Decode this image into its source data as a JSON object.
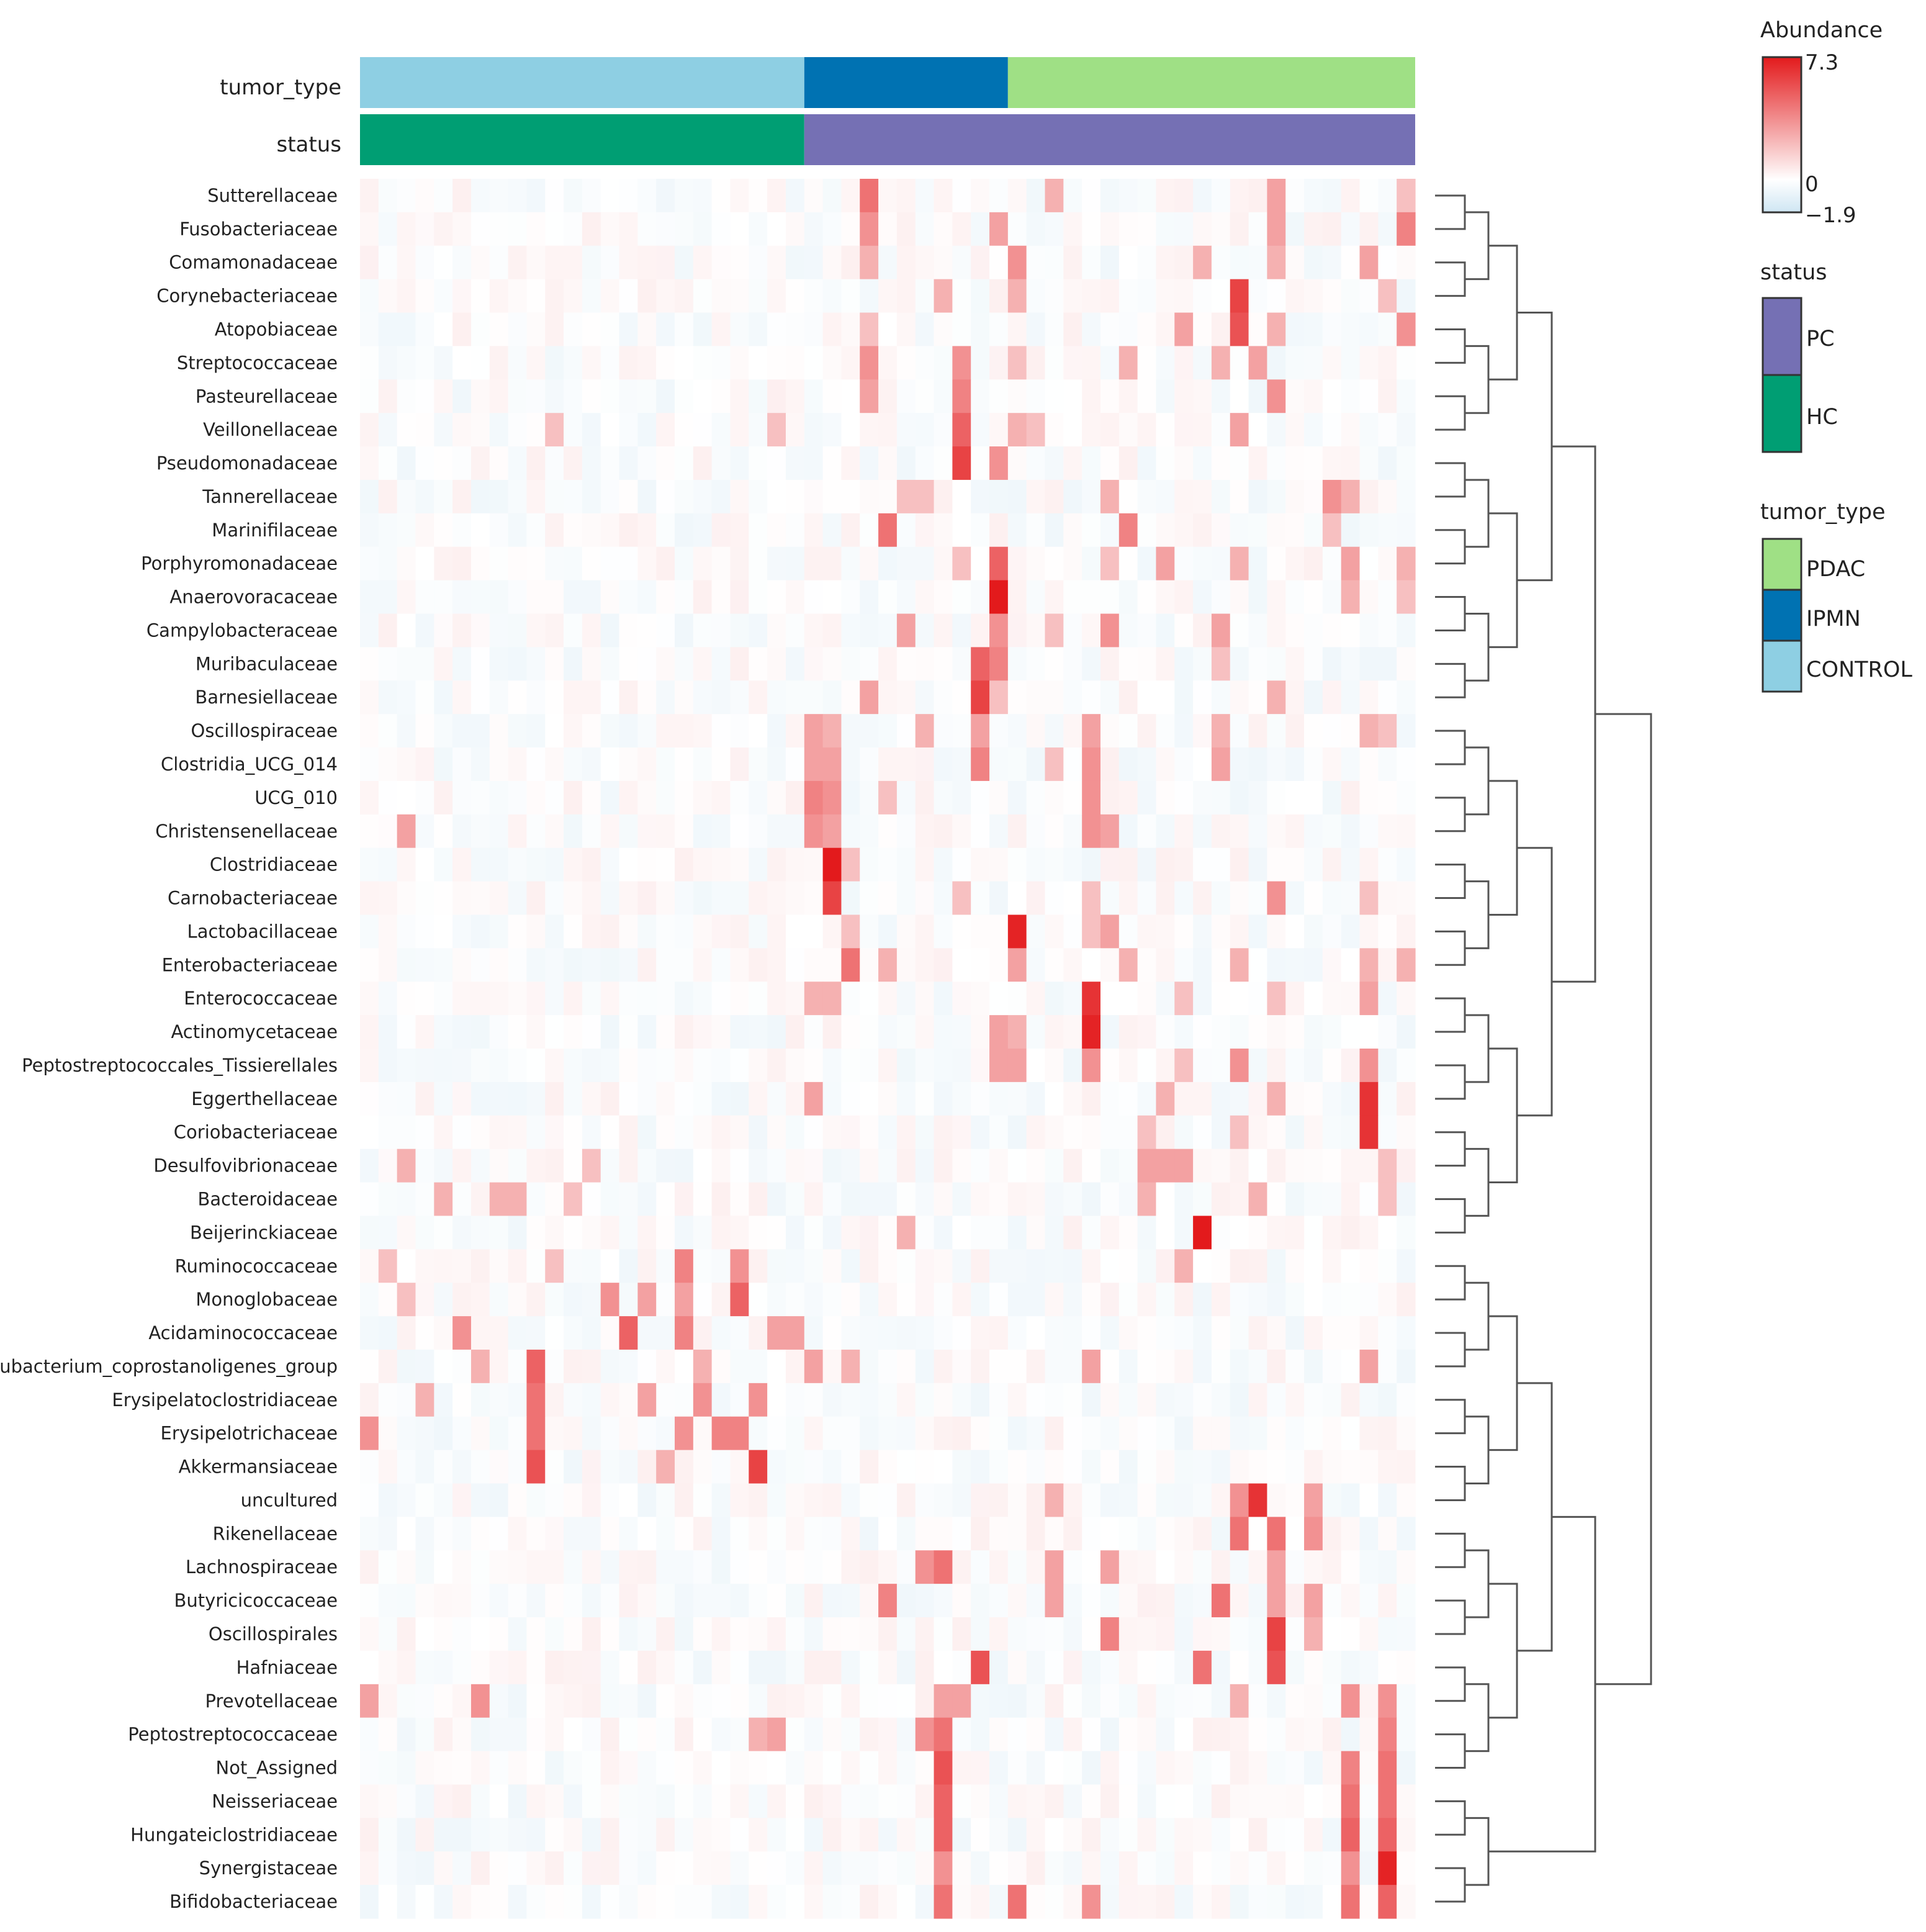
{
  "chart_data": {
    "type": "heatmap",
    "annotation_rows": [
      {
        "name": "tumor_type",
        "blocks": [
          {
            "label": "CONTROL",
            "count": 24
          },
          {
            "label": "IPMN",
            "count": 11
          },
          {
            "label": "PDAC",
            "count": 22
          }
        ]
      },
      {
        "name": "status",
        "blocks": [
          {
            "label": "HC",
            "count": 24
          },
          {
            "label": "PC",
            "count": 33
          }
        ]
      }
    ],
    "n_columns": 57,
    "rows": [
      "Sutterellaceae",
      "Fusobacteriaceae",
      "Comamonadaceae",
      "Corynebacteriaceae",
      "Atopobiaceae",
      "Streptococcaceae",
      "Pasteurellaceae",
      "Veillonellaceae",
      "Pseudomonadaceae",
      "Tannerellaceae",
      "Marinifilaceae",
      "Porphyromonadaceae",
      "Anaerovoracaceae",
      "Campylobacteraceae",
      "Muribaculaceae",
      "Barnesiellaceae",
      "Oscillospiraceae",
      "Clostridia_UCG_014",
      "UCG_010",
      "Christensenellaceae",
      "Clostridiaceae",
      "Carnobacteriaceae",
      "Lactobacillaceae",
      "Enterobacteriaceae",
      "Enterococcaceae",
      "Actinomycetaceae",
      "Peptostreptococcales_Tissierellales",
      "Eggerthellaceae",
      "Coriobacteriaceae",
      "Desulfovibrionaceae",
      "Bacteroidaceae",
      "Beijerinckiaceae",
      "Ruminococcaceae",
      "Monoglobaceae",
      "Acidaminococcaceae",
      "Eubacterium_coprostanoligenes_group",
      "Erysipelatoclostridiaceae",
      "Erysipelotrichaceae",
      "Akkermansiaceae",
      "uncultured",
      "Rikenellaceae",
      "Lachnospiraceae",
      "Butyricicoccaceae",
      "Oscillospirales",
      "Hafniaceae",
      "Prevotellaceae",
      "Peptostreptococcaceae",
      "Not_Assigned",
      "Neisseriaceae",
      "Hungateiclostridiaceae",
      "Synergistaceae",
      "Bifidobacteriaceae"
    ],
    "hot_cells": [
      [
        0,
        27,
        4.5
      ],
      [
        0,
        37,
        2.5
      ],
      [
        0,
        49,
        3.0
      ],
      [
        0,
        56,
        2.0
      ],
      [
        1,
        27,
        3.5
      ],
      [
        1,
        34,
        3.0
      ],
      [
        1,
        56,
        4.0
      ],
      [
        1,
        49,
        3.0
      ],
      [
        2,
        35,
        3.5
      ],
      [
        2,
        27,
        2.5
      ],
      [
        2,
        45,
        2.5
      ],
      [
        2,
        54,
        3.0
      ],
      [
        2,
        49,
        2.5
      ],
      [
        3,
        47,
        6.0
      ],
      [
        3,
        31,
        2.5
      ],
      [
        3,
        35,
        2.5
      ],
      [
        3,
        55,
        2.0
      ],
      [
        4,
        47,
        5.5
      ],
      [
        4,
        44,
        3.0
      ],
      [
        4,
        56,
        3.5
      ],
      [
        4,
        27,
        2.0
      ],
      [
        4,
        49,
        2.5
      ],
      [
        5,
        27,
        3.5
      ],
      [
        5,
        32,
        3.5
      ],
      [
        5,
        48,
        3.0
      ],
      [
        5,
        46,
        2.5
      ],
      [
        5,
        41,
        2.5
      ],
      [
        5,
        35,
        2.0
      ],
      [
        6,
        27,
        3.0
      ],
      [
        6,
        32,
        4.0
      ],
      [
        6,
        49,
        3.5
      ],
      [
        7,
        32,
        5.0
      ],
      [
        7,
        35,
        2.5
      ],
      [
        7,
        36,
        2.0
      ],
      [
        7,
        47,
        3.0
      ],
      [
        7,
        10,
        2.0
      ],
      [
        7,
        22,
        2.0
      ],
      [
        8,
        32,
        6.0
      ],
      [
        8,
        34,
        3.5
      ],
      [
        9,
        52,
        3.5
      ],
      [
        9,
        53,
        2.5
      ],
      [
        9,
        40,
        2.5
      ],
      [
        9,
        30,
        2.0
      ],
      [
        9,
        29,
        2.0
      ],
      [
        10,
        28,
        4.5
      ],
      [
        10,
        41,
        4.0
      ],
      [
        10,
        52,
        2.0
      ],
      [
        11,
        34,
        5.0
      ],
      [
        11,
        43,
        3.0
      ],
      [
        11,
        47,
        2.5
      ],
      [
        11,
        53,
        3.0
      ],
      [
        11,
        56,
        2.5
      ],
      [
        11,
        40,
        2.0
      ],
      [
        11,
        32,
        2.0
      ],
      [
        12,
        34,
        7.3
      ],
      [
        12,
        53,
        2.5
      ],
      [
        12,
        56,
        2.0
      ],
      [
        13,
        34,
        3.5
      ],
      [
        13,
        29,
        3.0
      ],
      [
        13,
        40,
        3.5
      ],
      [
        13,
        46,
        3.0
      ],
      [
        13,
        37,
        2.0
      ],
      [
        14,
        33,
        5.0
      ],
      [
        14,
        34,
        4.0
      ],
      [
        14,
        46,
        2.0
      ],
      [
        15,
        33,
        6.0
      ],
      [
        15,
        27,
        3.0
      ],
      [
        15,
        49,
        2.5
      ],
      [
        15,
        34,
        2.0
      ],
      [
        16,
        24,
        3.0
      ],
      [
        16,
        25,
        2.5
      ],
      [
        16,
        30,
        2.5
      ],
      [
        16,
        33,
        3.0
      ],
      [
        16,
        39,
        3.0
      ],
      [
        16,
        46,
        2.5
      ],
      [
        16,
        54,
        2.5
      ],
      [
        16,
        55,
        2.0
      ],
      [
        17,
        33,
        4.0
      ],
      [
        17,
        24,
        3.0
      ],
      [
        17,
        25,
        3.0
      ],
      [
        17,
        39,
        3.5
      ],
      [
        17,
        46,
        3.0
      ],
      [
        17,
        37,
        2.0
      ],
      [
        18,
        24,
        4.0
      ],
      [
        18,
        25,
        3.5
      ],
      [
        18,
        39,
        3.5
      ],
      [
        18,
        28,
        2.0
      ],
      [
        19,
        2,
        3.0
      ],
      [
        19,
        24,
        3.5
      ],
      [
        19,
        25,
        3.0
      ],
      [
        19,
        39,
        3.5
      ],
      [
        19,
        40,
        3.0
      ],
      [
        20,
        25,
        7.3
      ],
      [
        20,
        26,
        2.0
      ],
      [
        21,
        25,
        6.0
      ],
      [
        21,
        49,
        3.5
      ],
      [
        21,
        32,
        2.0
      ],
      [
        21,
        39,
        2.0
      ],
      [
        21,
        54,
        2.0
      ],
      [
        22,
        35,
        7.0
      ],
      [
        22,
        40,
        3.0
      ],
      [
        22,
        39,
        2.0
      ],
      [
        22,
        26,
        2.0
      ],
      [
        23,
        26,
        4.5
      ],
      [
        23,
        28,
        2.5
      ],
      [
        23,
        35,
        3.0
      ],
      [
        23,
        41,
        2.5
      ],
      [
        23,
        47,
        2.5
      ],
      [
        23,
        54,
        2.5
      ],
      [
        23,
        56,
        2.5
      ],
      [
        24,
        39,
        6.5
      ],
      [
        24,
        24,
        2.5
      ],
      [
        24,
        25,
        2.5
      ],
      [
        24,
        54,
        3.0
      ],
      [
        24,
        44,
        2.0
      ],
      [
        24,
        49,
        2.0
      ],
      [
        25,
        39,
        7.0
      ],
      [
        25,
        34,
        3.0
      ],
      [
        25,
        35,
        2.5
      ],
      [
        26,
        34,
        3.0
      ],
      [
        26,
        35,
        3.0
      ],
      [
        26,
        39,
        3.5
      ],
      [
        26,
        47,
        3.5
      ],
      [
        26,
        54,
        3.5
      ],
      [
        26,
        44,
        2.0
      ],
      [
        27,
        54,
        6.5
      ],
      [
        27,
        24,
        3.0
      ],
      [
        27,
        43,
        2.5
      ],
      [
        27,
        49,
        2.5
      ],
      [
        28,
        54,
        6.5
      ],
      [
        28,
        42,
        2.0
      ],
      [
        28,
        47,
        2.0
      ],
      [
        29,
        2,
        2.5
      ],
      [
        29,
        42,
        3.0
      ],
      [
        29,
        43,
        3.0
      ],
      [
        29,
        44,
        3.0
      ],
      [
        29,
        12,
        2.0
      ],
      [
        29,
        55,
        2.0
      ],
      [
        30,
        4,
        2.5
      ],
      [
        30,
        7,
        2.5
      ],
      [
        30,
        8,
        2.5
      ],
      [
        30,
        11,
        2.0
      ],
      [
        30,
        42,
        2.5
      ],
      [
        30,
        48,
        2.5
      ],
      [
        30,
        55,
        2.0
      ],
      [
        31,
        45,
        7.3
      ],
      [
        31,
        29,
        2.5
      ],
      [
        32,
        17,
        4.0
      ],
      [
        32,
        20,
        3.5
      ],
      [
        32,
        1,
        2.0
      ],
      [
        32,
        10,
        2.0
      ],
      [
        32,
        44,
        2.5
      ],
      [
        33,
        13,
        3.5
      ],
      [
        33,
        15,
        3.0
      ],
      [
        33,
        17,
        3.0
      ],
      [
        33,
        20,
        5.0
      ],
      [
        33,
        2,
        2.0
      ],
      [
        34,
        5,
        3.5
      ],
      [
        34,
        14,
        5.0
      ],
      [
        34,
        17,
        4.0
      ],
      [
        34,
        23,
        3.0
      ],
      [
        34,
        22,
        3.0
      ],
      [
        35,
        9,
        5.0
      ],
      [
        35,
        6,
        2.5
      ],
      [
        35,
        18,
        2.5
      ],
      [
        35,
        24,
        3.0
      ],
      [
        35,
        26,
        2.5
      ],
      [
        35,
        39,
        3.0
      ],
      [
        35,
        54,
        3.0
      ],
      [
        36,
        9,
        4.5
      ],
      [
        36,
        18,
        3.5
      ],
      [
        36,
        15,
        3.0
      ],
      [
        36,
        21,
        3.5
      ],
      [
        36,
        3,
        2.5
      ],
      [
        37,
        0,
        3.5
      ],
      [
        37,
        9,
        4.5
      ],
      [
        37,
        17,
        3.5
      ],
      [
        37,
        19,
        4.0
      ],
      [
        37,
        20,
        4.0
      ],
      [
        38,
        9,
        5.5
      ],
      [
        38,
        16,
        2.5
      ],
      [
        38,
        21,
        6.0
      ],
      [
        39,
        48,
        6.5
      ],
      [
        39,
        47,
        3.5
      ],
      [
        39,
        51,
        3.0
      ],
      [
        39,
        37,
        2.5
      ],
      [
        40,
        47,
        4.5
      ],
      [
        40,
        49,
        4.5
      ],
      [
        40,
        51,
        3.5
      ],
      [
        41,
        30,
        3.5
      ],
      [
        41,
        31,
        4.5
      ],
      [
        41,
        37,
        3.0
      ],
      [
        41,
        40,
        3.0
      ],
      [
        41,
        49,
        3.0
      ],
      [
        42,
        28,
        4.0
      ],
      [
        42,
        37,
        3.0
      ],
      [
        42,
        46,
        4.5
      ],
      [
        42,
        49,
        3.0
      ],
      [
        42,
        51,
        3.0
      ],
      [
        43,
        49,
        6.0
      ],
      [
        43,
        40,
        4.0
      ],
      [
        43,
        51,
        2.5
      ],
      [
        44,
        33,
        5.5
      ],
      [
        44,
        45,
        4.5
      ],
      [
        44,
        49,
        5.5
      ],
      [
        45,
        0,
        3.0
      ],
      [
        45,
        6,
        3.5
      ],
      [
        45,
        31,
        3.0
      ],
      [
        45,
        32,
        3.0
      ],
      [
        45,
        53,
        3.5
      ],
      [
        45,
        55,
        3.5
      ],
      [
        45,
        47,
        2.5
      ],
      [
        46,
        22,
        3.0
      ],
      [
        46,
        30,
        3.5
      ],
      [
        46,
        31,
        4.5
      ],
      [
        46,
        55,
        4.0
      ],
      [
        46,
        21,
        2.5
      ],
      [
        47,
        31,
        5.5
      ],
      [
        47,
        53,
        4.0
      ],
      [
        47,
        55,
        4.5
      ],
      [
        48,
        31,
        5.0
      ],
      [
        48,
        53,
        4.5
      ],
      [
        48,
        55,
        4.5
      ],
      [
        49,
        31,
        5.0
      ],
      [
        49,
        53,
        5.0
      ],
      [
        49,
        55,
        5.0
      ],
      [
        50,
        31,
        3.5
      ],
      [
        50,
        53,
        3.5
      ],
      [
        50,
        55,
        7.0
      ],
      [
        51,
        31,
        4.5
      ],
      [
        51,
        35,
        4.5
      ],
      [
        51,
        39,
        3.5
      ],
      [
        51,
        53,
        4.5
      ],
      [
        51,
        55,
        5.0
      ]
    ],
    "legend": {
      "colorbar": {
        "title": "Abundance",
        "max": 7.3,
        "mid": 0,
        "min": -1.9,
        "tick_labels": [
          "7.3",
          "0",
          "−1.9"
        ]
      },
      "status": {
        "title": "status",
        "items": [
          {
            "label": "PC",
            "color": "#7570b4"
          },
          {
            "label": "HC",
            "color": "#009e73"
          }
        ]
      },
      "tumor_type": {
        "title": "tumor_type",
        "items": [
          {
            "label": "PDAC",
            "color": "#9fe085"
          },
          {
            "label": "IPMN",
            "color": "#0072b2"
          },
          {
            "label": "CONTROL",
            "color": "#8ecfe3"
          }
        ]
      }
    },
    "dendrogram": "right"
  },
  "colors": {
    "high": "#e31a1c",
    "mid": "#ffffff",
    "low": "#cfe6f3",
    "control": "#8ecfe3",
    "ipmn": "#0072b2",
    "pdac": "#9fe085",
    "hc": "#009e73",
    "pc": "#7570b4"
  }
}
